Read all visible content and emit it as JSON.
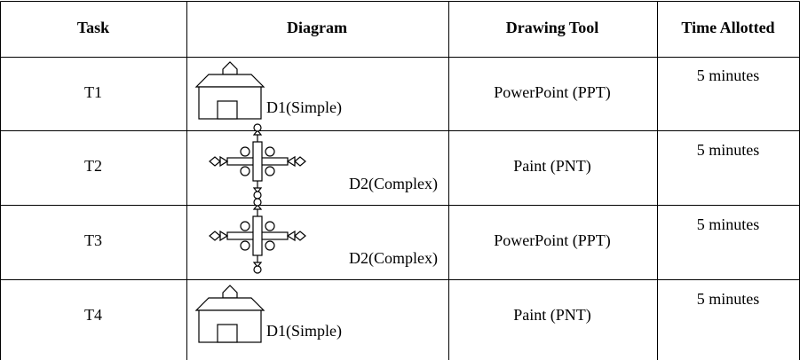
{
  "table": {
    "header": [
      "Task",
      "Diagram",
      "Drawing Tool",
      "Time Allotted"
    ],
    "rows": [
      [
        "T1",
        "D1(Simple)",
        "PowerPoint (PPT)",
        "5 minutes"
      ],
      [
        "T2",
        "D2(Complex)",
        "Paint (PNT)",
        "5 minutes"
      ],
      [
        "T3",
        "D2(Complex)",
        "PowerPoint (PPT)",
        "5 minutes"
      ],
      [
        "T4",
        "D1(Simple)",
        "Paint (PNT)",
        "5 minutes"
      ]
    ]
  }
}
